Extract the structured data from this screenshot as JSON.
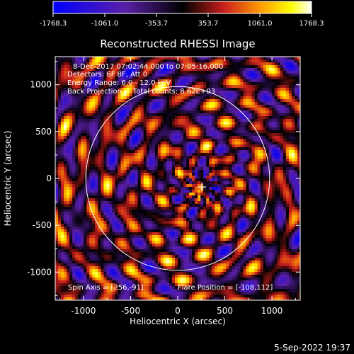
{
  "chart_data": {
    "type": "heatmap",
    "title": "Reconstructed RHESSI Image",
    "xlabel": "Heliocentric X (arcsec)",
    "ylabel": "Heliocentric Y (arcsec)",
    "xlim": [
      -1300,
      1300
    ],
    "ylim": [
      -1300,
      1300
    ],
    "x_ticks": [
      -1000,
      -500,
      0,
      500,
      1000
    ],
    "y_ticks": [
      -1000,
      -500,
      0,
      500,
      1000
    ],
    "colorbar": {
      "min": -1768.3,
      "max": 1768.3,
      "tick_labels": [
        "-1768.3",
        "-1061.0",
        "-353.7",
        "353.7",
        "1061.0",
        "1768.3"
      ],
      "colormap": [
        "#0000ff",
        "#5a1fa8",
        "#000000",
        "#c81e1e",
        "#ff9900",
        "#ffff00",
        "#ffffff"
      ]
    },
    "annotations": [
      "8-Dec-2017 07:02:44.000 to 07:05:16.000",
      "Detectors: 6F 8F, Att 0",
      "Energy Range: 6.0 - 12.0 keV",
      "Back Projection     Total counts: 8.62E+03"
    ],
    "solar_disk_radius": 975,
    "spin_axis": [
      256,
      -91
    ],
    "flare_position": [
      -108,
      112
    ],
    "spin_axis_label": "Spin Axis = [256,-91]",
    "flare_position_label": "Flare Position = [-108,112]"
  },
  "footer": {
    "date": "5-Sep-2022 19:37"
  }
}
